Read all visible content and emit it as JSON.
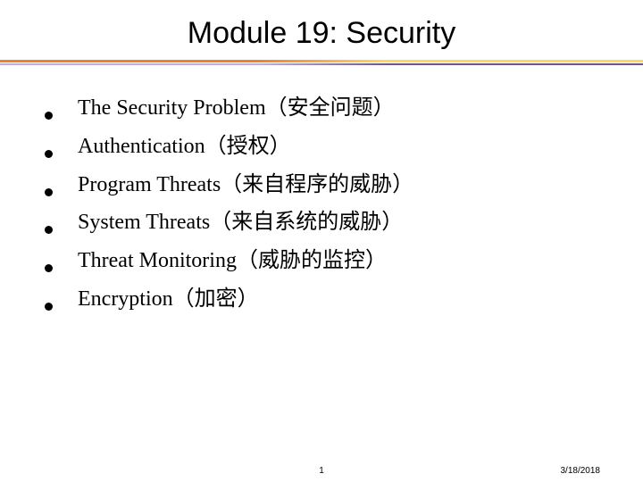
{
  "slide": {
    "title": "Module 19:  Security",
    "title_fontsize": 34,
    "title_font": "Arial",
    "body_fontsize": 24,
    "body_font": "Times New Roman",
    "background_color": "#ffffff",
    "text_color": "#000000",
    "divider": {
      "top_gradient": [
        "#f08030",
        "#ffd860"
      ],
      "bottom_gradient": [
        "#c0b0e0",
        "#7050a0"
      ]
    },
    "bullets": [
      "The Security Problem（安全问题）",
      "Authentication（授权）",
      "Program Threats（来自程序的威胁）",
      "System Threats（来自系统的威胁）",
      "Threat Monitoring（威胁的监控）",
      "Encryption（加密）"
    ],
    "footer": {
      "page_number": "1",
      "date": "3/18/2018",
      "fontsize": 10
    }
  }
}
